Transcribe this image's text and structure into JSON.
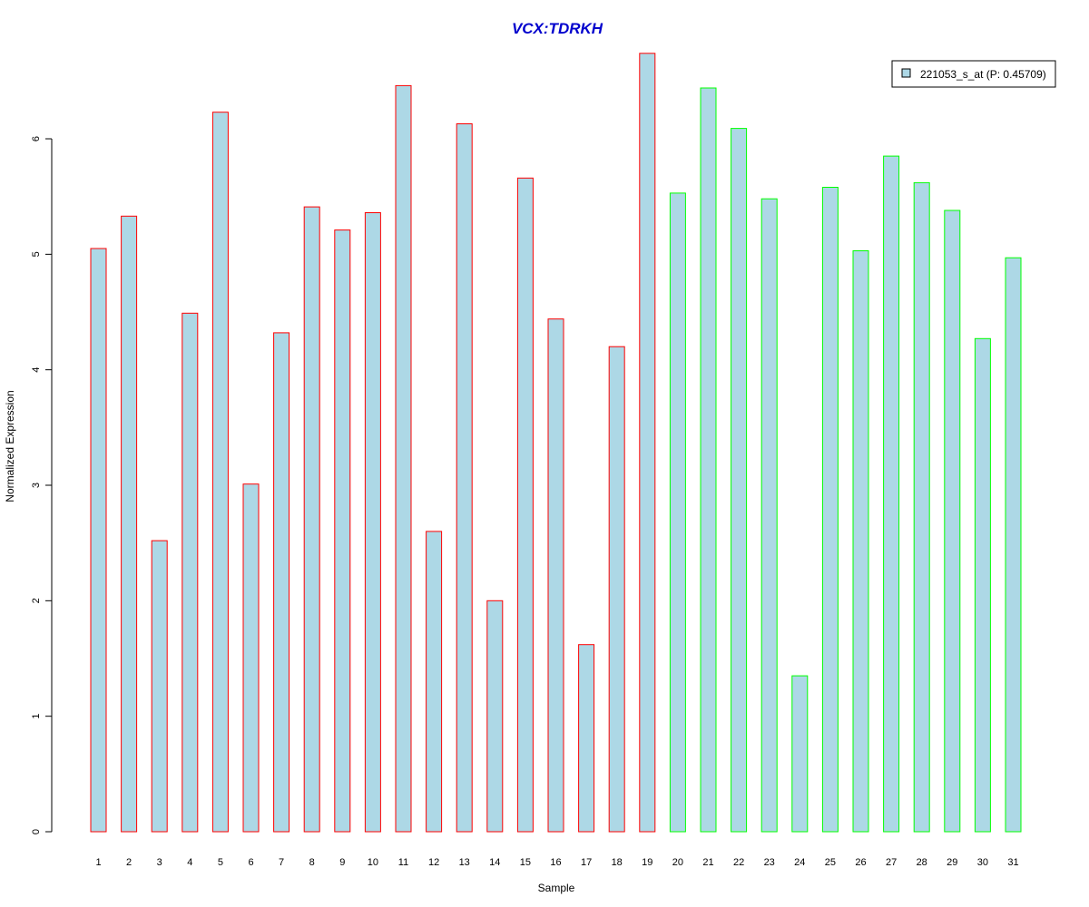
{
  "chart_data": {
    "type": "bar",
    "title": "VCX:TDRKH",
    "xlabel": "Sample",
    "ylabel": "Normalized Expression",
    "ylim": [
      0,
      6.75
    ],
    "yticks": [
      0,
      1,
      2,
      3,
      4,
      5,
      6
    ],
    "grid": false,
    "legend": {
      "position": "top-right",
      "entries": [
        {
          "label": "221053_s_at (P: 0.45709)",
          "fill": "#add8e6"
        }
      ]
    },
    "categories": [
      "1",
      "2",
      "3",
      "4",
      "5",
      "6",
      "7",
      "8",
      "9",
      "10",
      "11",
      "12",
      "13",
      "14",
      "15",
      "16",
      "17",
      "18",
      "19",
      "20",
      "21",
      "22",
      "23",
      "24",
      "25",
      "26",
      "27",
      "28",
      "29",
      "30",
      "31"
    ],
    "values": [
      5.05,
      5.33,
      2.52,
      4.49,
      6.23,
      3.01,
      4.32,
      5.41,
      5.21,
      5.36,
      6.46,
      2.6,
      6.13,
      2.0,
      5.66,
      4.44,
      1.62,
      4.2,
      6.74,
      5.53,
      6.44,
      6.09,
      5.48,
      1.35,
      5.58,
      5.03,
      5.85,
      5.62,
      5.38,
      4.27,
      4.97
    ],
    "bar_fill": "#add8e6",
    "border_colors": [
      "#ff0000",
      "#ff0000",
      "#ff0000",
      "#ff0000",
      "#ff0000",
      "#ff0000",
      "#ff0000",
      "#ff0000",
      "#ff0000",
      "#ff0000",
      "#ff0000",
      "#ff0000",
      "#ff0000",
      "#ff0000",
      "#ff0000",
      "#ff0000",
      "#ff0000",
      "#ff0000",
      "#ff0000",
      "#00ff00",
      "#00ff00",
      "#00ff00",
      "#00ff00",
      "#00ff00",
      "#00ff00",
      "#00ff00",
      "#00ff00",
      "#00ff00",
      "#00ff00",
      "#00ff00",
      "#00ff00"
    ],
    "title_color": "#0000cd"
  }
}
